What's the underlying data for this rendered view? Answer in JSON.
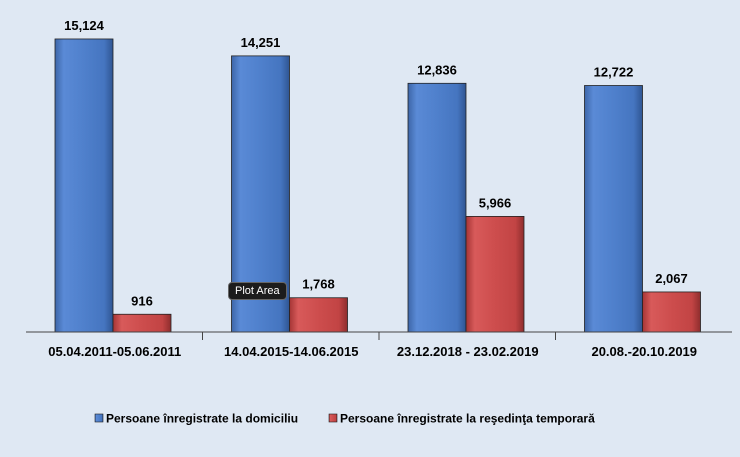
{
  "chart_data": {
    "type": "bar",
    "categories": [
      "05.04.2011-05.06.2011",
      "14.04.2015-14.06.2015",
      "23.12.2018 - 23.02.2019",
      "20.08.-20.10.2019"
    ],
    "series": [
      {
        "name": "Persoane înregistrate la domiciliu",
        "values": [
          15124,
          14251,
          12836,
          12722
        ],
        "labels": [
          "15,124",
          "14,251",
          "12,836",
          "12,722"
        ],
        "color": "#4a7cc8"
      },
      {
        "name": "Persoane înregistrate la reşedinţa temporară",
        "values": [
          916,
          1768,
          5966,
          2067
        ],
        "labels": [
          "916",
          "1,768",
          "5,966",
          "2,067"
        ],
        "color": "#c94a4a"
      }
    ],
    "ylim": [
      0,
      16000
    ],
    "grid": false,
    "legend": "bottom"
  },
  "tooltip": {
    "text": "Plot Area"
  }
}
